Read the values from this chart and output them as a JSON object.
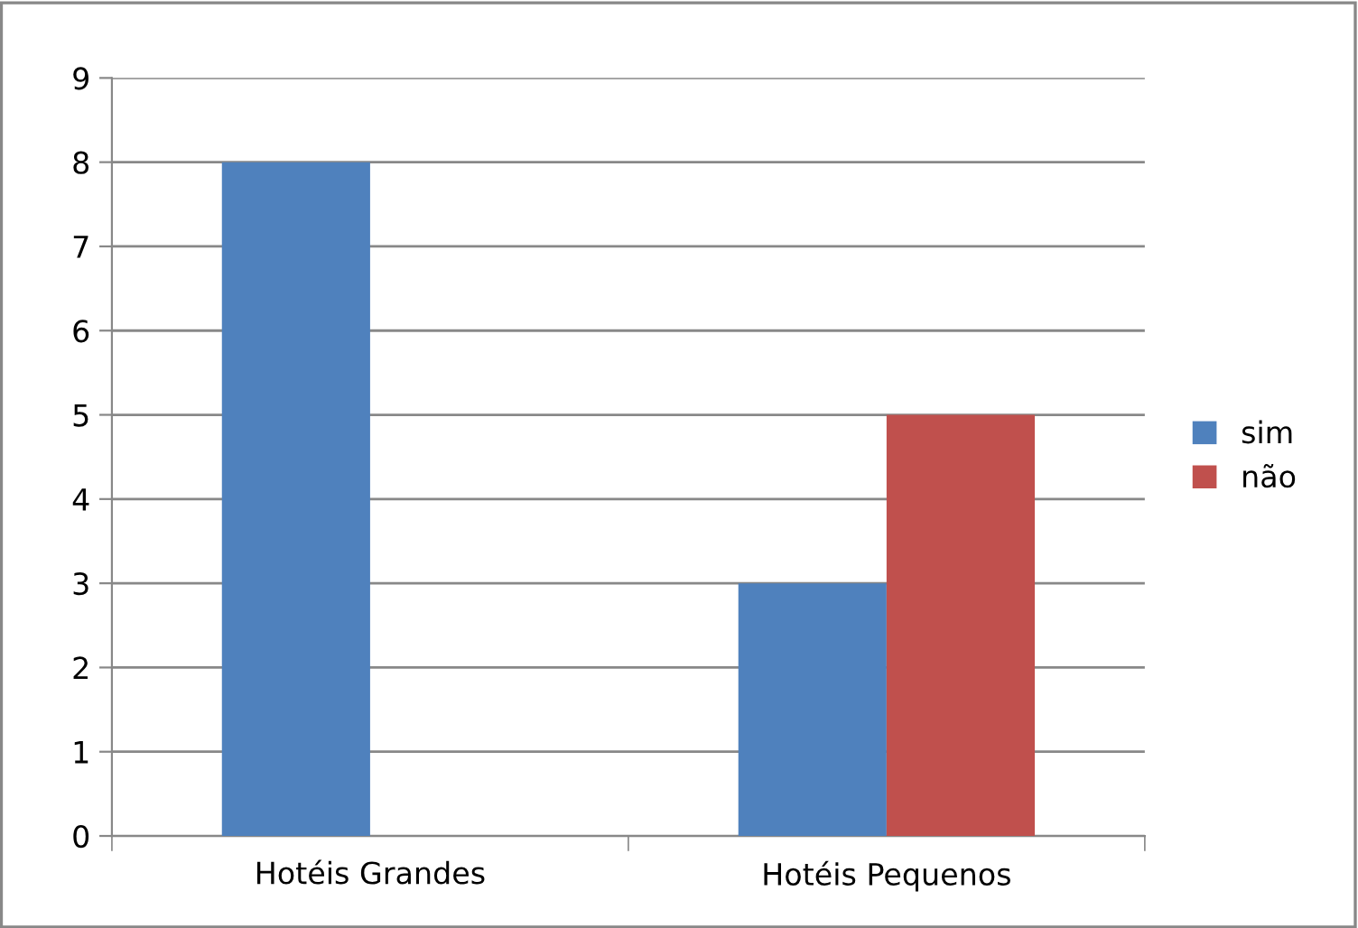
{
  "chart_data": {
    "type": "bar",
    "categories": [
      "Hotéis Grandes",
      "Hotéis Pequenos"
    ],
    "series": [
      {
        "name": "sim",
        "color": "#4f81bd",
        "values": [
          8,
          3
        ]
      },
      {
        "name": "não",
        "color": "#c0504d",
        "values": [
          0,
          5
        ]
      }
    ],
    "ylim": [
      0,
      9
    ],
    "yticks": [
      0,
      1,
      2,
      3,
      4,
      5,
      6,
      7,
      8,
      9
    ],
    "grid": "y",
    "legend": "right"
  }
}
